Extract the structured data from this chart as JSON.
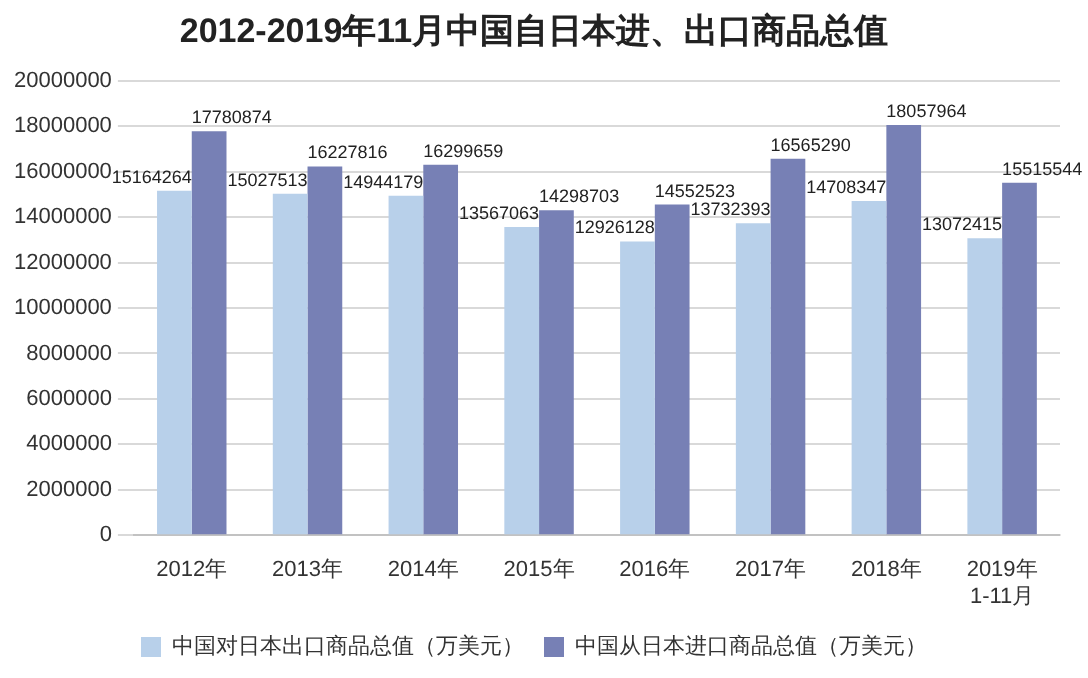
{
  "chart_data": {
    "type": "bar",
    "title": "2012-2019年11月中国自日本进、出口商品总值",
    "categories": [
      "2012年",
      "2013年",
      "2014年",
      "2015年",
      "2016年",
      "2017年",
      "2018年",
      "2019年\n1-11月"
    ],
    "series": [
      {
        "name": "中国对日本出口商品总值（万美元）",
        "color": "#b8d0ea",
        "values": [
          15164264,
          15027513,
          14944179,
          13567063,
          12926128,
          13732393,
          14708347,
          13072415
        ]
      },
      {
        "name": "中国从日本进口商品总值（万美元）",
        "color": "#7780b5",
        "values": [
          17780874,
          16227816,
          16299659,
          14298703,
          14552523,
          16565290,
          18057964,
          15515544
        ]
      }
    ],
    "ylim": [
      0,
      20000000
    ],
    "yticks": [
      0,
      2000000,
      4000000,
      6000000,
      8000000,
      10000000,
      12000000,
      14000000,
      16000000,
      18000000,
      20000000
    ],
    "grid": "y",
    "legend": "bottom",
    "data_labels": true
  }
}
